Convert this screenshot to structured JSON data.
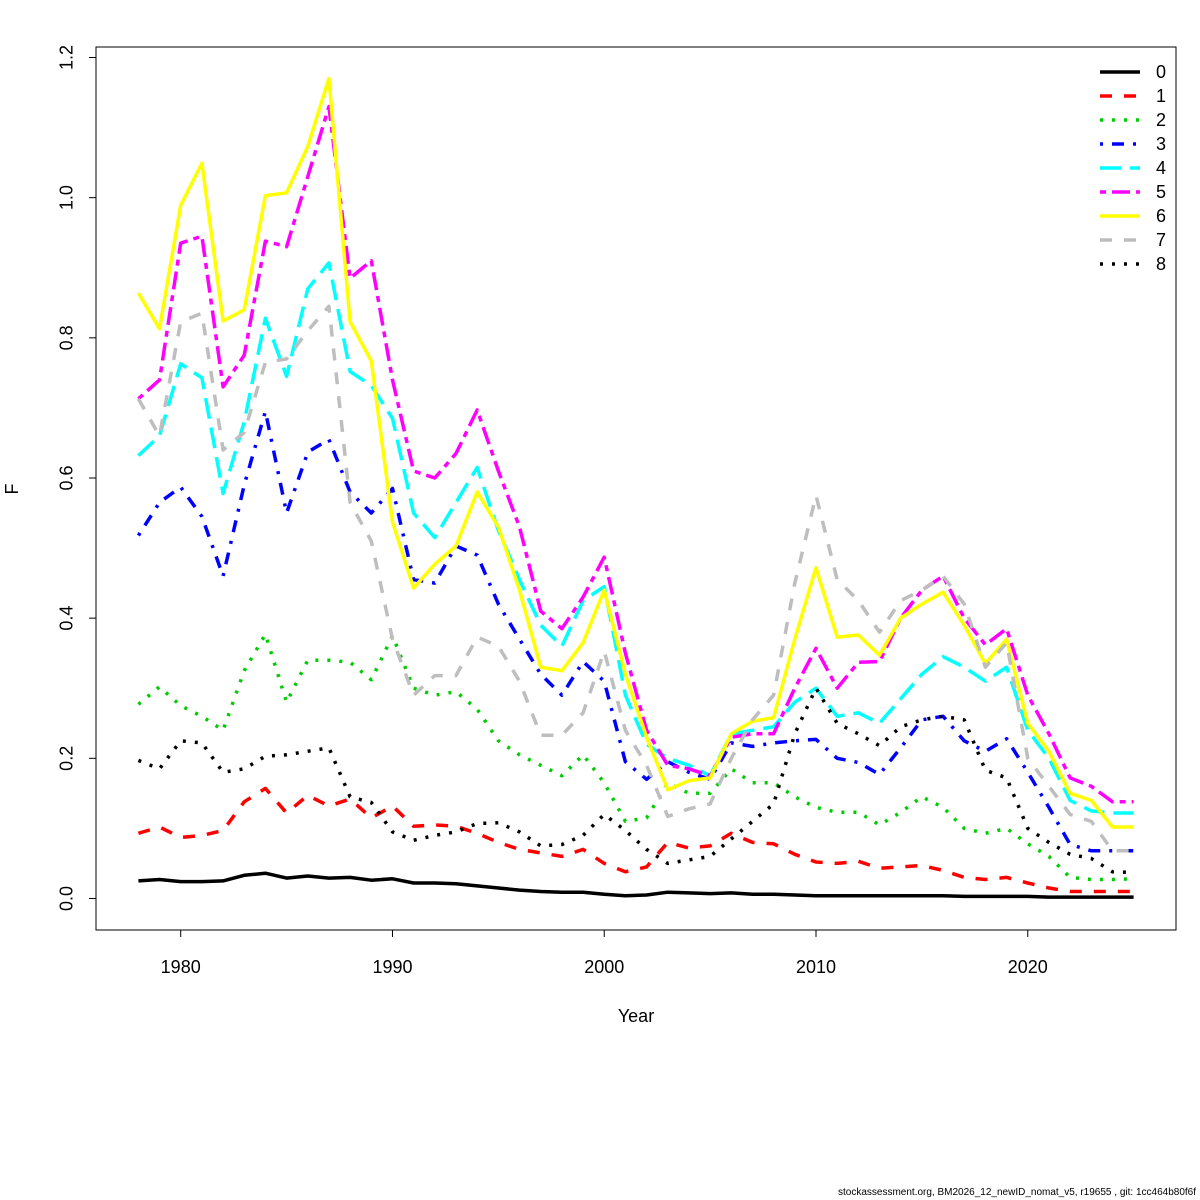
{
  "chart_data": {
    "type": "line",
    "xlabel": "Year",
    "ylabel": "F",
    "xlim": [
      1976,
      2027
    ],
    "ylim": [
      -0.045,
      1.215
    ],
    "xticks": [
      1980,
      1990,
      2000,
      2010,
      2020
    ],
    "yticks": [
      "0.0",
      "0.2",
      "0.4",
      "0.6",
      "0.8",
      "1.0",
      "1.2"
    ],
    "grid": false,
    "legend_position": "top-right",
    "x": [
      1978,
      1979,
      1980,
      1981,
      1982,
      1983,
      1984,
      1985,
      1986,
      1987,
      1988,
      1989,
      1990,
      1991,
      1992,
      1993,
      1994,
      1995,
      1996,
      1997,
      1998,
      1999,
      2000,
      2001,
      2002,
      2003,
      2004,
      2005,
      2006,
      2007,
      2008,
      2009,
      2010,
      2011,
      2012,
      2013,
      2014,
      2015,
      2016,
      2017,
      2018,
      2019,
      2020,
      2021,
      2022,
      2023,
      2024,
      2025
    ],
    "series": [
      {
        "name": "0",
        "color": "#000000",
        "dash": "solid",
        "values": [
          0.025,
          0.027,
          0.024,
          0.024,
          0.025,
          0.033,
          0.036,
          0.029,
          0.032,
          0.029,
          0.03,
          0.026,
          0.028,
          0.022,
          0.022,
          0.021,
          0.018,
          0.015,
          0.012,
          0.01,
          0.009,
          0.009,
          0.006,
          0.004,
          0.005,
          0.009,
          0.008,
          0.007,
          0.008,
          0.006,
          0.006,
          0.005,
          0.004,
          0.004,
          0.004,
          0.004,
          0.004,
          0.004,
          0.004,
          0.003,
          0.003,
          0.003,
          0.003,
          0.002,
          0.002,
          0.002,
          0.002,
          0.002
        ]
      },
      {
        "name": "1",
        "color": "#ff0000",
        "dash": "dashed",
        "values": [
          0.093,
          0.102,
          0.087,
          0.09,
          0.097,
          0.138,
          0.157,
          0.122,
          0.147,
          0.132,
          0.142,
          0.115,
          0.132,
          0.103,
          0.105,
          0.103,
          0.093,
          0.08,
          0.07,
          0.065,
          0.06,
          0.07,
          0.05,
          0.038,
          0.045,
          0.08,
          0.072,
          0.075,
          0.093,
          0.08,
          0.078,
          0.063,
          0.052,
          0.05,
          0.053,
          0.043,
          0.045,
          0.047,
          0.04,
          0.03,
          0.027,
          0.03,
          0.022,
          0.015,
          0.01,
          0.01,
          0.01,
          0.01
        ]
      },
      {
        "name": "2",
        "color": "#00cd00",
        "dash": "dotted",
        "values": [
          0.277,
          0.302,
          0.275,
          0.26,
          0.24,
          0.325,
          0.377,
          0.28,
          0.34,
          0.34,
          0.337,
          0.312,
          0.375,
          0.3,
          0.29,
          0.295,
          0.27,
          0.225,
          0.205,
          0.19,
          0.175,
          0.205,
          0.165,
          0.11,
          0.115,
          0.165,
          0.15,
          0.15,
          0.185,
          0.165,
          0.165,
          0.145,
          0.13,
          0.123,
          0.123,
          0.105,
          0.123,
          0.145,
          0.13,
          0.1,
          0.093,
          0.1,
          0.078,
          0.06,
          0.03,
          0.027,
          0.027,
          0.028
        ]
      },
      {
        "name": "3",
        "color": "#0000ff",
        "dash": "dotdash",
        "values": [
          0.518,
          0.565,
          0.587,
          0.545,
          0.46,
          0.59,
          0.695,
          0.55,
          0.637,
          0.655,
          0.58,
          0.55,
          0.585,
          0.455,
          0.45,
          0.503,
          0.49,
          0.42,
          0.37,
          0.32,
          0.29,
          0.338,
          0.31,
          0.195,
          0.17,
          0.195,
          0.18,
          0.17,
          0.222,
          0.217,
          0.222,
          0.225,
          0.227,
          0.2,
          0.194,
          0.177,
          0.215,
          0.255,
          0.26,
          0.225,
          0.21,
          0.228,
          0.18,
          0.13,
          0.077,
          0.068,
          0.068,
          0.068
        ]
      },
      {
        "name": "4",
        "color": "#00ffff",
        "dash": "longdash",
        "values": [
          0.632,
          0.66,
          0.763,
          0.743,
          0.578,
          0.68,
          0.828,
          0.745,
          0.87,
          0.907,
          0.752,
          0.732,
          0.685,
          0.55,
          0.515,
          0.565,
          0.615,
          0.525,
          0.455,
          0.39,
          0.36,
          0.425,
          0.445,
          0.29,
          0.22,
          0.2,
          0.19,
          0.175,
          0.235,
          0.24,
          0.245,
          0.28,
          0.3,
          0.26,
          0.265,
          0.25,
          0.285,
          0.32,
          0.345,
          0.33,
          0.31,
          0.33,
          0.24,
          0.2,
          0.14,
          0.125,
          0.122,
          0.122
        ]
      },
      {
        "name": "5",
        "color": "#ff00ff",
        "dash": "twodash",
        "values": [
          0.713,
          0.74,
          0.935,
          0.945,
          0.73,
          0.775,
          0.938,
          0.93,
          1.03,
          1.13,
          0.885,
          0.91,
          0.74,
          0.61,
          0.6,
          0.635,
          0.697,
          0.61,
          0.53,
          0.41,
          0.385,
          0.43,
          0.487,
          0.35,
          0.24,
          0.19,
          0.185,
          0.175,
          0.23,
          0.235,
          0.235,
          0.3,
          0.357,
          0.3,
          0.337,
          0.338,
          0.4,
          0.44,
          0.46,
          0.4,
          0.362,
          0.385,
          0.29,
          0.235,
          0.172,
          0.16,
          0.138,
          0.138
        ]
      },
      {
        "name": "6",
        "color": "#ffff00",
        "dash": "solid",
        "values": [
          0.864,
          0.813,
          0.989,
          1.049,
          0.824,
          0.84,
          1.003,
          1.007,
          1.073,
          1.17,
          0.823,
          0.767,
          0.537,
          0.443,
          0.477,
          0.503,
          0.58,
          0.53,
          0.44,
          0.33,
          0.325,
          0.365,
          0.44,
          0.32,
          0.23,
          0.155,
          0.168,
          0.172,
          0.235,
          0.253,
          0.258,
          0.37,
          0.472,
          0.373,
          0.376,
          0.347,
          0.4,
          0.42,
          0.437,
          0.39,
          0.335,
          0.37,
          0.25,
          0.21,
          0.15,
          0.14,
          0.102,
          0.102
        ]
      },
      {
        "name": "7",
        "color": "#bebebe",
        "dash": "dashed",
        "values": [
          0.713,
          0.66,
          0.823,
          0.835,
          0.64,
          0.665,
          0.765,
          0.77,
          0.81,
          0.845,
          0.565,
          0.51,
          0.37,
          0.29,
          0.318,
          0.318,
          0.373,
          0.36,
          0.31,
          0.233,
          0.233,
          0.265,
          0.353,
          0.24,
          0.19,
          0.117,
          0.128,
          0.135,
          0.2,
          0.255,
          0.29,
          0.45,
          0.575,
          0.455,
          0.425,
          0.38,
          0.425,
          0.44,
          0.46,
          0.42,
          0.33,
          0.365,
          0.2,
          0.16,
          0.12,
          0.11,
          0.068,
          0.068
        ]
      },
      {
        "name": "8",
        "color": "#000000",
        "dash": "dotted",
        "values": [
          0.197,
          0.185,
          0.225,
          0.222,
          0.18,
          0.185,
          0.203,
          0.205,
          0.21,
          0.215,
          0.145,
          0.137,
          0.095,
          0.083,
          0.09,
          0.095,
          0.107,
          0.108,
          0.095,
          0.075,
          0.077,
          0.09,
          0.12,
          0.097,
          0.07,
          0.05,
          0.055,
          0.06,
          0.085,
          0.11,
          0.135,
          0.235,
          0.3,
          0.25,
          0.235,
          0.218,
          0.245,
          0.255,
          0.26,
          0.255,
          0.183,
          0.172,
          0.1,
          0.08,
          0.063,
          0.057,
          0.038,
          0.037
        ]
      }
    ]
  },
  "footer": "stockassessment.org, BM2026_12_newID_nomat_v5, r19655 , git: 1cc464b80f6f"
}
